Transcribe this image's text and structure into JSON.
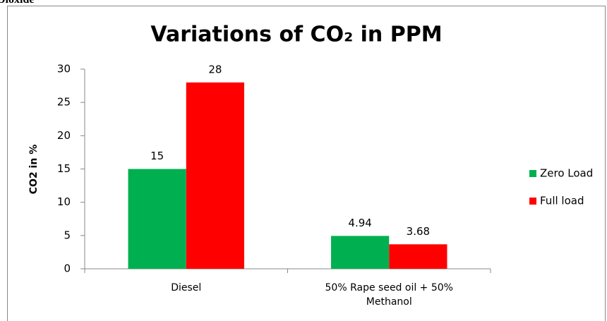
{
  "caption": "Dioxide",
  "chart_data": {
    "type": "bar",
    "title": "Variations of CO₂ in PPM",
    "y_label": "CO2 in %",
    "categories": [
      "Diesel",
      "50% Rape seed  oil + 50% Methanol"
    ],
    "series": [
      {
        "name": "Zero Load",
        "color": "#00b050",
        "values": [
          15,
          4.94
        ]
      },
      {
        "name": "Full load",
        "color": "#ff0000",
        "values": [
          28,
          3.68
        ]
      }
    ],
    "ylim": [
      0,
      30
    ],
    "yticks": [
      0,
      5,
      10,
      15,
      20,
      25,
      30
    ],
    "grid": false,
    "legend": "right"
  }
}
